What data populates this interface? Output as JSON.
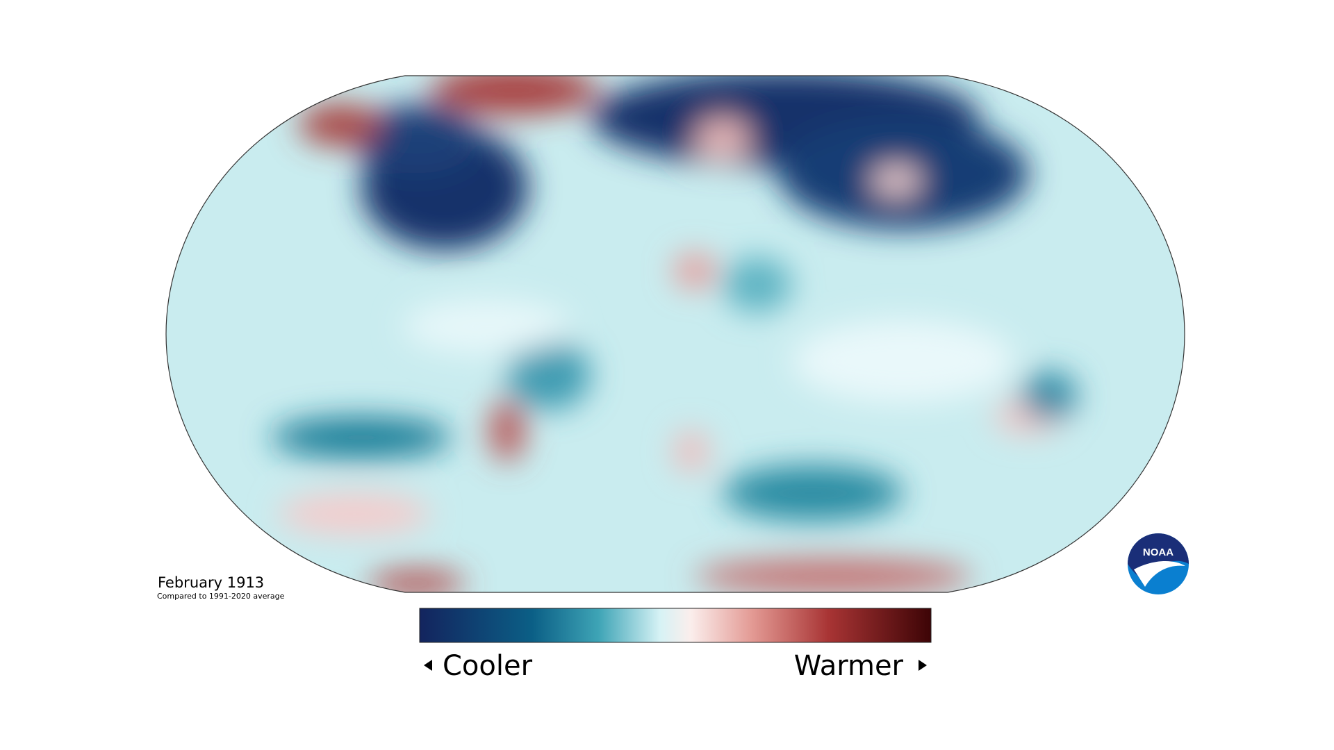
{
  "title": "February 1913",
  "subtitle": "Compared to 1991-2020 average",
  "legend": {
    "low_label": "Cooler",
    "high_label": "Warmer"
  },
  "logo": {
    "text": "NOAA"
  }
}
